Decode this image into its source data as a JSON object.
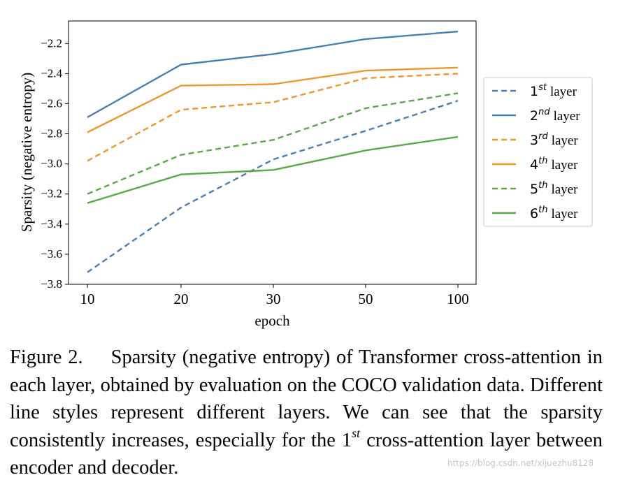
{
  "chart_data": {
    "type": "line",
    "categories": [
      "10",
      "20",
      "30",
      "50",
      "100"
    ],
    "xlabel": "epoch",
    "ylabel": "Sparsity (negative entropy)",
    "ylim": [
      -3.8,
      -2.05
    ],
    "yticks": [
      -2.2,
      -2.4,
      -2.6,
      -2.8,
      -3.0,
      -3.2,
      -3.4,
      -3.6,
      -3.8
    ],
    "ytick_labels": [
      "−2.2",
      "−2.4",
      "−2.6",
      "−2.8",
      "−3.0",
      "−3.2",
      "−3.4",
      "−3.6",
      "−3.8"
    ],
    "grid": false,
    "legend_position": "right",
    "series": [
      {
        "name": "1st layer",
        "num": "1",
        "sup": "st",
        "label": "layer",
        "color": "#4a7fb5",
        "dash": true,
        "values": [
          -3.72,
          -3.29,
          -2.97,
          -2.78,
          -2.58
        ]
      },
      {
        "name": "2nd layer",
        "num": "2",
        "sup": "nd",
        "label": "layer",
        "color": "#4a7fb5",
        "dash": false,
        "values": [
          -2.69,
          -2.34,
          -2.27,
          -2.17,
          -2.12
        ]
      },
      {
        "name": "3rd layer",
        "num": "3",
        "sup": "rd",
        "label": "layer",
        "color": "#f0962e",
        "dash": true,
        "values": [
          -2.98,
          -2.64,
          -2.59,
          -2.43,
          -2.4
        ]
      },
      {
        "name": "4th layer",
        "num": "4",
        "sup": "th",
        "label": "layer",
        "color": "#f0962e",
        "dash": false,
        "values": [
          -2.79,
          -2.48,
          -2.47,
          -2.38,
          -2.36
        ]
      },
      {
        "name": "5th layer",
        "num": "5",
        "sup": "th",
        "label": "layer",
        "color": "#5aa84a",
        "dash": true,
        "values": [
          -3.2,
          -2.94,
          -2.84,
          -2.63,
          -2.53
        ]
      },
      {
        "name": "6th layer",
        "num": "6",
        "sup": "th",
        "label": "layer",
        "color": "#5aa84a",
        "dash": false,
        "values": [
          -3.26,
          -3.07,
          -3.04,
          -2.91,
          -2.82
        ]
      }
    ]
  },
  "caption": {
    "label": "Figure 2.",
    "text_before_sup": "Sparsity (negative entropy) of Transformer cross-attention in each layer, obtained by evaluation on the COCO validation data. Different line styles represent different layers. We can see that the sparsity consistently increases, especially for the 1",
    "sup": "st",
    "text_after_sup": " cross-attention layer between encoder and decoder."
  },
  "watermark": "https://blog.csdn.net/xijuezhu8128"
}
